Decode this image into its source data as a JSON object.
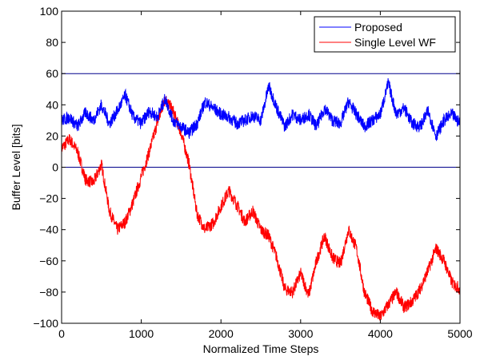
{
  "chart_data": {
    "type": "line",
    "xlabel": "Normalized Time Steps",
    "ylabel": "Buffer Level [bits]",
    "xlim": [
      0,
      5000
    ],
    "ylim": [
      -100,
      100
    ],
    "x_ticks": [
      0,
      1000,
      2000,
      3000,
      4000,
      5000
    ],
    "y_ticks": [
      -100,
      -80,
      -60,
      -40,
      -20,
      0,
      20,
      40,
      60,
      80,
      100
    ],
    "grid": false,
    "legend_position": "top-right",
    "reference_lines": [
      {
        "y": 60,
        "color": "#00008b"
      },
      {
        "y": 0,
        "color": "#00008b"
      }
    ],
    "series": [
      {
        "name": "Proposed",
        "color": "#0000ff",
        "x": [
          0,
          100,
          200,
          300,
          400,
          500,
          600,
          700,
          800,
          900,
          1000,
          1100,
          1200,
          1300,
          1400,
          1500,
          1600,
          1700,
          1800,
          1900,
          2000,
          2100,
          2200,
          2300,
          2400,
          2500,
          2600,
          2700,
          2800,
          2900,
          3000,
          3100,
          3200,
          3300,
          3400,
          3500,
          3600,
          3700,
          3800,
          3900,
          4000,
          4100,
          4200,
          4300,
          4400,
          4500,
          4600,
          4700,
          4800,
          4900,
          5000
        ],
        "values": [
          30,
          32,
          26,
          35,
          30,
          40,
          28,
          36,
          46,
          32,
          28,
          36,
          32,
          44,
          30,
          26,
          22,
          28,
          42,
          38,
          34,
          32,
          28,
          30,
          33,
          30,
          52,
          38,
          26,
          34,
          30,
          34,
          26,
          38,
          30,
          28,
          42,
          34,
          26,
          30,
          34,
          54,
          34,
          38,
          28,
          26,
          36,
          20,
          30,
          34,
          28
        ]
      },
      {
        "name": "Single Level WF",
        "color": "#ff0000",
        "x": [
          0,
          100,
          200,
          300,
          400,
          500,
          600,
          700,
          800,
          900,
          1000,
          1100,
          1200,
          1300,
          1400,
          1500,
          1600,
          1700,
          1800,
          1900,
          2000,
          2100,
          2200,
          2300,
          2400,
          2500,
          2600,
          2700,
          2800,
          2900,
          3000,
          3100,
          3200,
          3300,
          3400,
          3500,
          3600,
          3700,
          3800,
          3900,
          4000,
          4100,
          4200,
          4300,
          4400,
          4500,
          4600,
          4700,
          4800,
          4900,
          5000
        ],
        "values": [
          12,
          18,
          10,
          -8,
          -10,
          2,
          -28,
          -40,
          -35,
          -22,
          -6,
          10,
          28,
          44,
          36,
          22,
          2,
          -30,
          -40,
          -36,
          -25,
          -15,
          -24,
          -35,
          -28,
          -40,
          -44,
          -58,
          -78,
          -80,
          -68,
          -82,
          -60,
          -44,
          -58,
          -62,
          -40,
          -52,
          -80,
          -92,
          -96,
          -88,
          -80,
          -90,
          -86,
          -78,
          -66,
          -52,
          -60,
          -74,
          -78
        ]
      }
    ]
  }
}
